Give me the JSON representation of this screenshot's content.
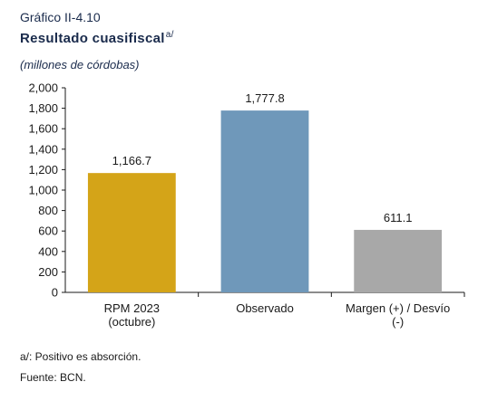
{
  "header": {
    "label": "Gráfico II-4.10",
    "title": "Resultado cuasifiscal",
    "title_sup": "a/",
    "subtitle": "(millones de córdobas)"
  },
  "notes": {
    "footnote": "a/: Positivo es absorción.",
    "source": "Fuente: BCN."
  },
  "chart_data": {
    "type": "bar",
    "categories": [
      [
        "RPM 2023",
        "(octubre)"
      ],
      [
        "Observado"
      ],
      [
        "Margen (+) / Desvío",
        "(-)"
      ]
    ],
    "values": [
      1166.7,
      1777.8,
      611.1
    ],
    "value_labels": [
      "1,166.7",
      "1,777.8",
      "611.1"
    ],
    "colors": [
      "#d4a418",
      "#6f98ba",
      "#a8a8a8"
    ],
    "ylim": [
      0,
      2000
    ],
    "yticks": [
      0,
      200,
      400,
      600,
      800,
      1000,
      1200,
      1400,
      1600,
      1800,
      2000
    ],
    "ytick_labels": [
      "0",
      "200",
      "400",
      "600",
      "800",
      "1,000",
      "1,200",
      "1,400",
      "1,600",
      "1,800",
      "2,000"
    ],
    "grid": false
  }
}
